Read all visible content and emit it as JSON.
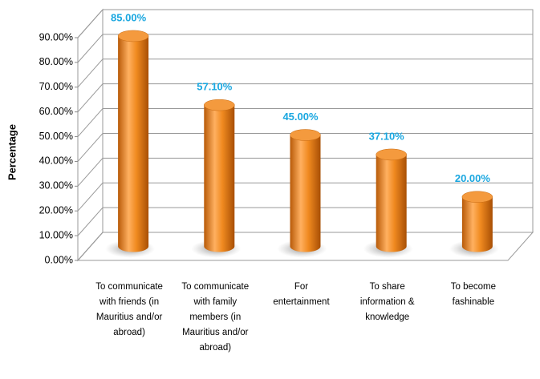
{
  "chart_data": {
    "type": "bar3d",
    "y_label": "Percentage",
    "categories": [
      [
        "To communicate",
        "with friends (in",
        "Mauritius and/or",
        "abroad)"
      ],
      [
        "To communicate",
        "with family",
        "members (in",
        "Mauritius and/or",
        "abroad)"
      ],
      [
        "For",
        "entertainment"
      ],
      [
        "To share",
        "information &",
        "knowledge"
      ],
      [
        "To become",
        "fashinable"
      ]
    ],
    "values": [
      85,
      57.1,
      45,
      37.1,
      20
    ],
    "value_labels": [
      "85.00%",
      "57.10%",
      "45.00%",
      "37.10%",
      "20.00%"
    ],
    "color": "#f0871e",
    "ylim": [
      0,
      90
    ],
    "yticks": [
      {
        "value": 0,
        "label": "0.00%"
      },
      {
        "value": 10,
        "label": "10.00%"
      },
      {
        "value": 20,
        "label": "20.00%"
      },
      {
        "value": 30,
        "label": "30.00%"
      },
      {
        "value": 40,
        "label": "40.00%"
      },
      {
        "value": 50,
        "label": "50.00%"
      },
      {
        "value": 60,
        "label": "60.00%"
      },
      {
        "value": 70,
        "label": "70.00%"
      },
      {
        "value": 80,
        "label": "80.00%"
      },
      {
        "value": 90,
        "label": "90.00%"
      }
    ],
    "grid": true
  }
}
